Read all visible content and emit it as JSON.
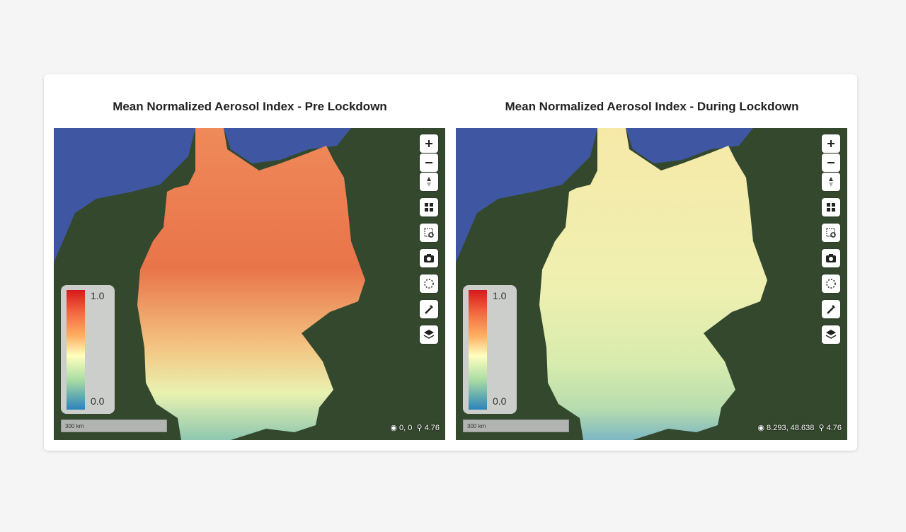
{
  "panels": [
    {
      "title": "Mean Normalized Aerosol Index - Pre Lockdown",
      "legend": {
        "max": "1.0",
        "min": "0.0"
      },
      "scale": "300 km",
      "coordinates": "0, 0",
      "zoom": "4.76"
    },
    {
      "title": "Mean Normalized Aerosol Index - During Lockdown",
      "legend": {
        "max": "1.0",
        "min": "0.0"
      },
      "scale": "300 km",
      "coordinates": "8.293, 48.638",
      "zoom": "4.76"
    }
  ]
}
